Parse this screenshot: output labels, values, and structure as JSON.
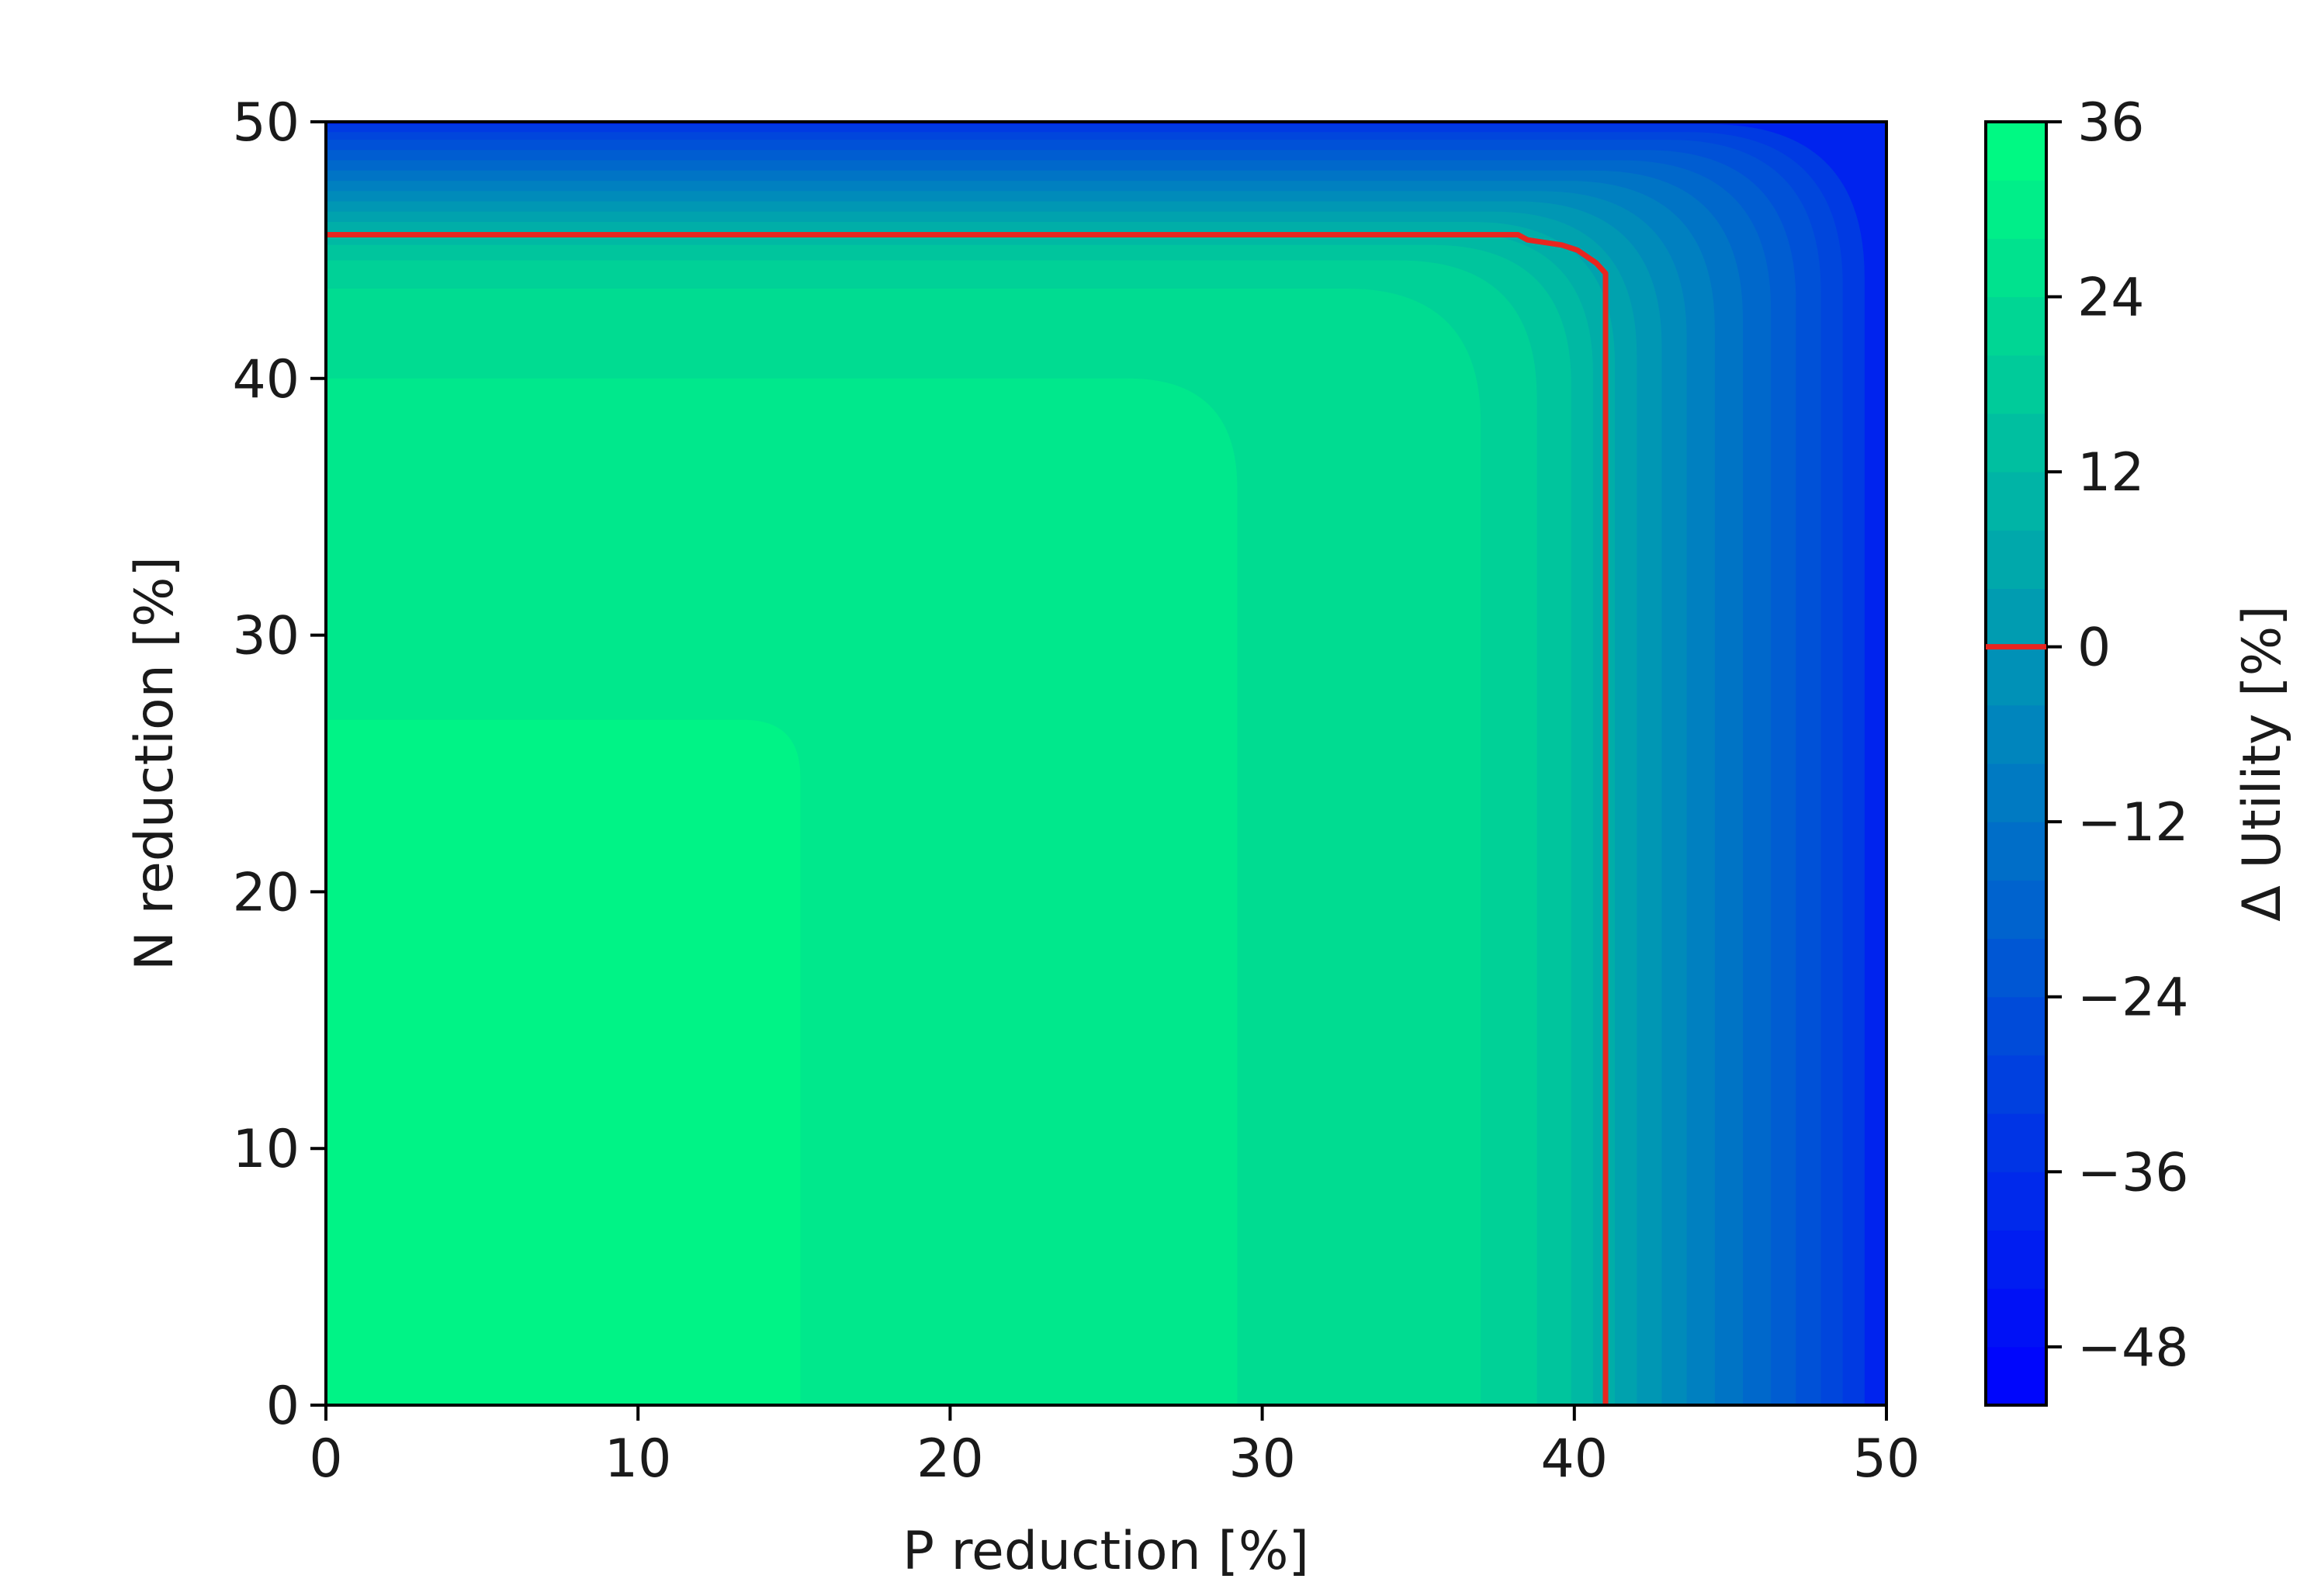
{
  "chart_data": {
    "type": "contour",
    "xlabel": "P reduction [%]",
    "ylabel": "N reduction [%]",
    "xlim": [
      0,
      50
    ],
    "ylim": [
      0,
      50
    ],
    "xticks": [
      "0",
      "10",
      "20",
      "30",
      "40",
      "50"
    ],
    "yticks": [
      "0",
      "10",
      "20",
      "30",
      "40",
      "50"
    ],
    "colorbar": {
      "label": "Δ Utility [%]",
      "range": [
        -52,
        36
      ],
      "ticks": [
        "36",
        "24",
        "12",
        "0",
        "−12",
        "−24",
        "−36",
        "−48"
      ],
      "tick_values": [
        36,
        24,
        12,
        0,
        -12,
        -24,
        -36,
        -48
      ],
      "colormap": "winter",
      "color_low": "#0000ff",
      "color_high": "#00ff80",
      "zero_marker_color": "#e8251f"
    },
    "levels": [
      36,
      32,
      28,
      24,
      20,
      16,
      12,
      8,
      4,
      0,
      -4,
      -8,
      -12,
      -16,
      -20,
      -24,
      -28,
      -32,
      -36,
      -40,
      -44,
      -48
    ],
    "regions": [
      {
        "level": 32,
        "x_extent": 15.2,
        "y_extent": 26.7
      },
      {
        "level": 28,
        "x_extent": 29.2,
        "y_extent": 40.0
      },
      {
        "level": 24,
        "x_extent": 37.0,
        "y_extent": 43.5
      },
      {
        "level": 20,
        "x_extent": 38.8,
        "y_extent": 44.6
      },
      {
        "level": 16,
        "x_extent": 39.9,
        "y_extent": 45.2
      },
      {
        "level": 12,
        "x_extent": 40.6,
        "y_extent": 45.7
      },
      {
        "level": 8,
        "x_extent": 41.3,
        "y_extent": 46.1
      },
      {
        "level": 4,
        "x_extent": 42.0,
        "y_extent": 46.5
      },
      {
        "level": 0,
        "x_extent": 42.8,
        "y_extent": 46.9
      },
      {
        "level": -4,
        "x_extent": 43.6,
        "y_extent": 47.3
      },
      {
        "level": -8,
        "x_extent": 44.5,
        "y_extent": 47.7
      },
      {
        "level": -12,
        "x_extent": 45.4,
        "y_extent": 48.1
      },
      {
        "level": -16,
        "x_extent": 46.3,
        "y_extent": 48.5
      },
      {
        "level": -20,
        "x_extent": 47.1,
        "y_extent": 48.9
      },
      {
        "level": -24,
        "x_extent": 47.9,
        "y_extent": 49.3
      },
      {
        "level": -28,
        "x_extent": 48.6,
        "y_extent": 49.6
      },
      {
        "level": -32,
        "x_extent": 49.3,
        "y_extent": 49.9
      }
    ],
    "zero_contour": {
      "color": "#e8251f",
      "points": [
        [
          0,
          45.6
        ],
        [
          38.2,
          45.6
        ],
        [
          38.5,
          45.4
        ],
        [
          39.6,
          45.2
        ],
        [
          40.1,
          45.0
        ],
        [
          40.7,
          44.5
        ],
        [
          41.0,
          44.1
        ],
        [
          41.0,
          0
        ]
      ]
    }
  }
}
